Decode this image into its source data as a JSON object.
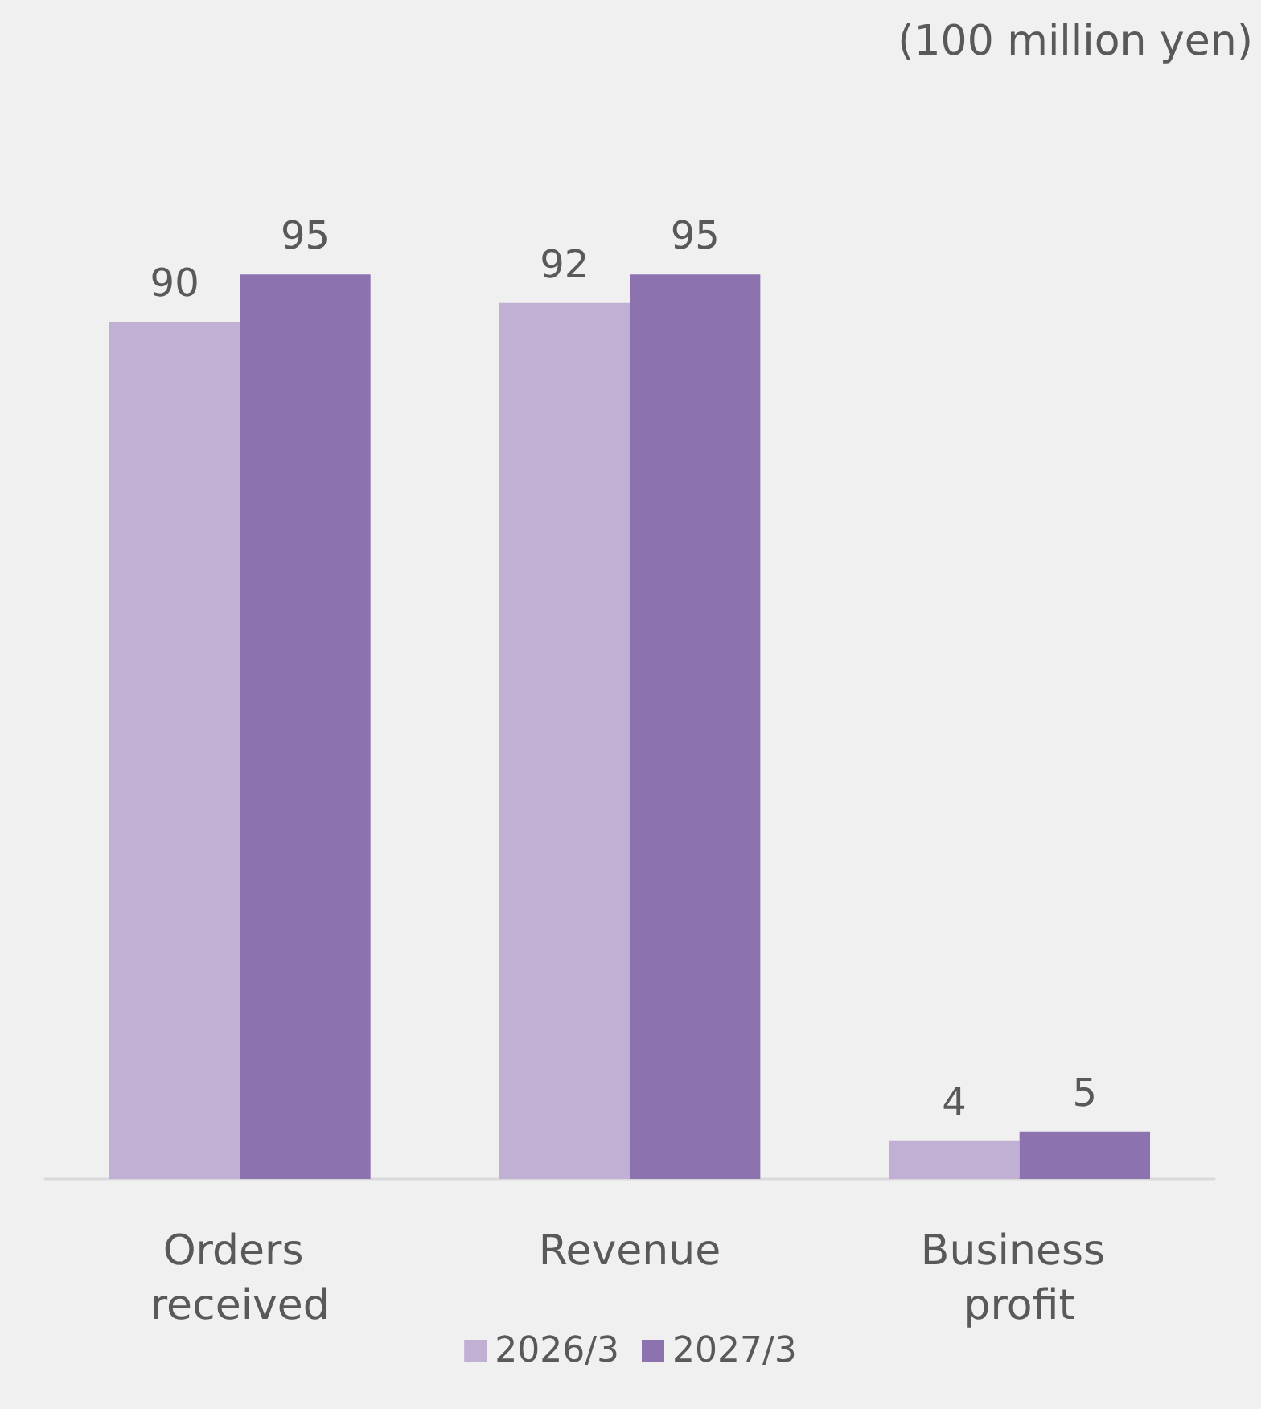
{
  "chart_data": {
    "type": "bar",
    "title": "(100 million yen)",
    "categories": [
      "Orders received",
      "Revenue",
      "Business profit"
    ],
    "series": [
      {
        "name": "2026/3",
        "color": "#c0b0d3",
        "values": [
          90,
          92,
          4
        ]
      },
      {
        "name": "2027/3",
        "color": "#8c73b0",
        "values": [
          95,
          95,
          5
        ]
      }
    ],
    "data_labels": true,
    "legend": "bottom"
  }
}
